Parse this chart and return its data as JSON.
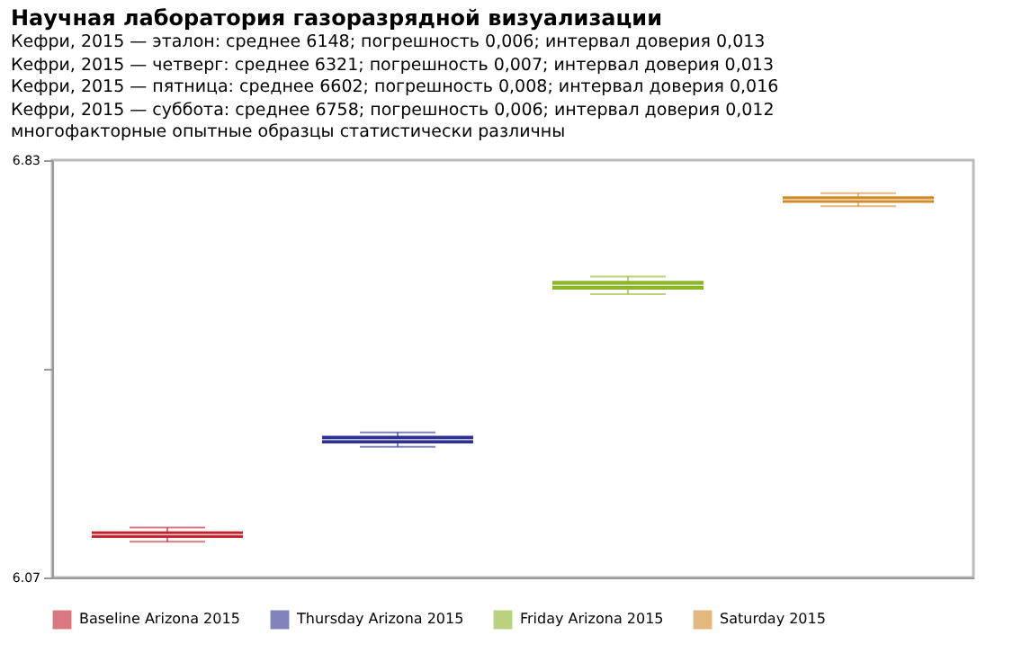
{
  "chart_data": {
    "type": "box",
    "title": "Научная лаборатория газоразрядной визуализации",
    "annotations": [
      "Кефри, 2015 — эталон: среднее 6148; погрешность 0,006; интервал доверия 0,013",
      "Кефри, 2015 — четверг: среднее 6321; погрешность 0,007; интервал доверия 0,013",
      "Кефри, 2015 — пятница: среднее 6602; погрешность 0,008; интервал доверия 0,016",
      "Кефри, 2015 — суббота: среднее 6758; погрешность 0,006; интервал доверия 0,012",
      "многофакторные опытные образцы статистически различны"
    ],
    "categories": [
      null,
      null,
      null,
      null
    ],
    "series": [
      {
        "name": "Baseline Arizona 2015",
        "color": "#c0202a",
        "boxes": [
          {
            "low": 6.135,
            "q1": 6.142,
            "median": 6.148,
            "q3": 6.154,
            "high": 6.161
          },
          null,
          null,
          null
        ]
      },
      {
        "name": "Thursday Arizona 2015",
        "color": "#2e3192",
        "boxes": [
          null,
          {
            "low": 6.308,
            "q1": 6.314,
            "median": 6.321,
            "q3": 6.328,
            "high": 6.334
          },
          null,
          null
        ]
      },
      {
        "name": "Friday Arizona 2015",
        "color": "#8db52a",
        "boxes": [
          null,
          null,
          {
            "low": 6.586,
            "q1": 6.594,
            "median": 6.602,
            "q3": 6.61,
            "high": 6.618
          },
          null
        ]
      },
      {
        "name": "Saturday 2015",
        "color": "#d08a2a",
        "boxes": [
          null,
          null,
          null,
          {
            "low": 6.746,
            "q1": 6.752,
            "median": 6.758,
            "q3": 6.764,
            "high": 6.77
          }
        ]
      }
    ],
    "ylim": [
      6.07,
      6.83
    ],
    "yticks": [
      6.07,
      {
        "value": 6.45,
        "label": null
      },
      6.83
    ],
    "tick_labels": "y",
    "legend": "bottom",
    "grid": false
  }
}
